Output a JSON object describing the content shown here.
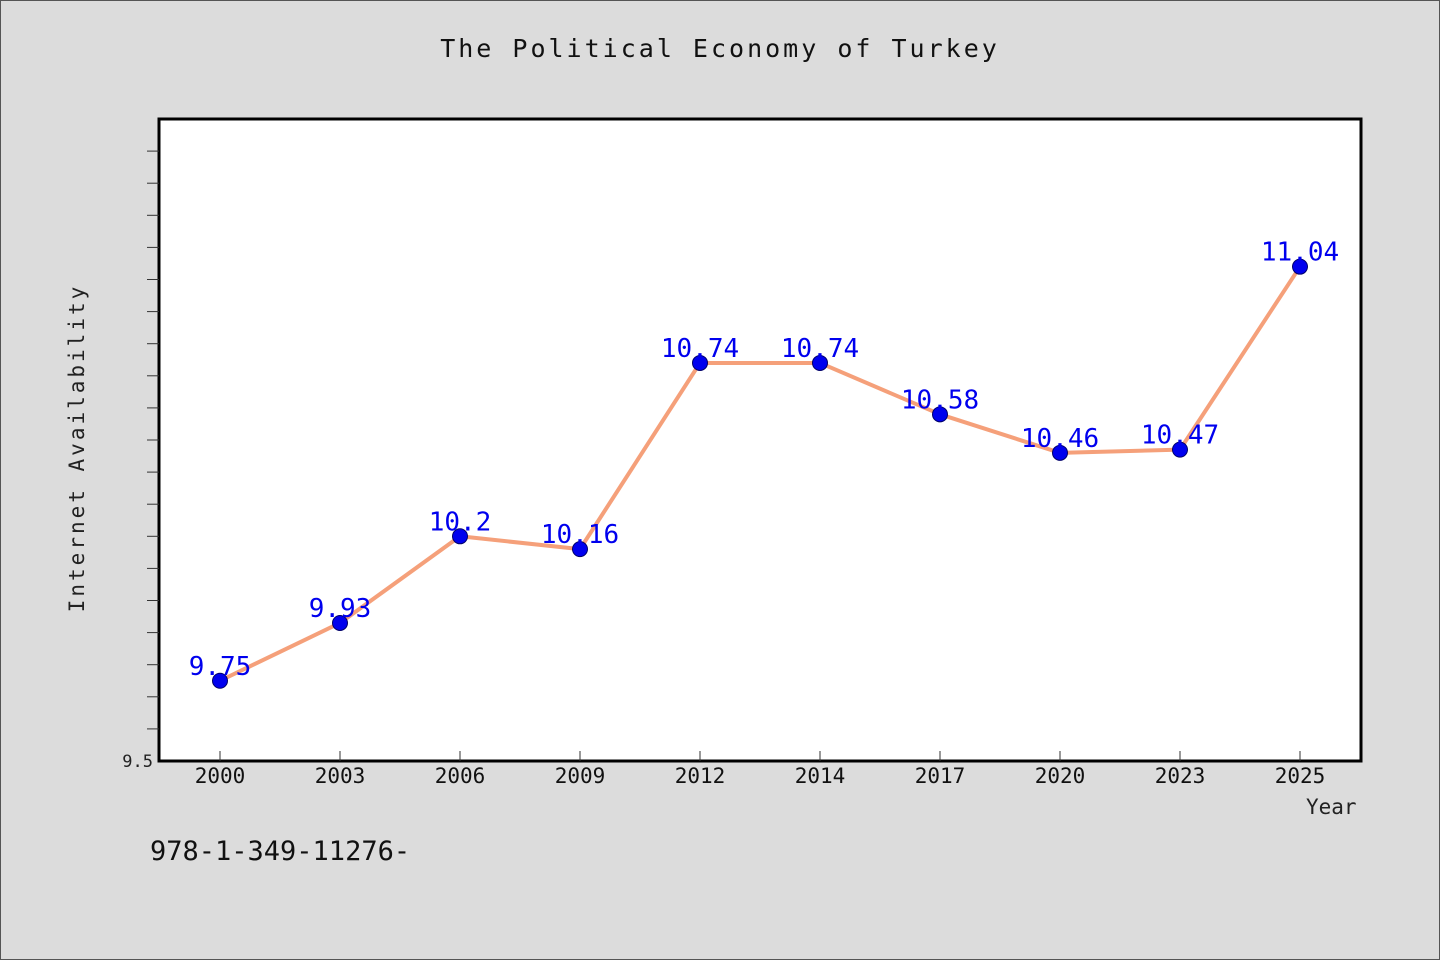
{
  "chart_data": {
    "type": "line",
    "title": "The Political Economy of Turkey",
    "xlabel": "Year",
    "ylabel": "Internet Availability",
    "categories": [
      "2000",
      "2003",
      "2006",
      "2009",
      "2012",
      "2014",
      "2017",
      "2020",
      "2023",
      "2025"
    ],
    "series": [
      {
        "values": [
          9.75,
          9.93,
          10.2,
          10.16,
          10.74,
          10.74,
          10.58,
          10.46,
          10.47,
          11.04
        ],
        "data_labels": [
          "9.75",
          "9.93",
          "10.2",
          "10.16",
          "10.74",
          "10.74",
          "10.58",
          "10.46",
          "10.47",
          "11.04"
        ],
        "line_color": "#f5a07a",
        "marker_color": "#0000ee",
        "label_color": "#0000ee"
      }
    ],
    "ylim": [
      9.5,
      11.5
    ],
    "y_tick_labels": [
      "9.5"
    ],
    "grid": false,
    "legend": "none"
  },
  "footer": {
    "isbn": "978-1-349-11276-"
  },
  "colors": {
    "background": "#dcdcdc",
    "plot_background": "#ffffff",
    "axis": "#000000"
  }
}
